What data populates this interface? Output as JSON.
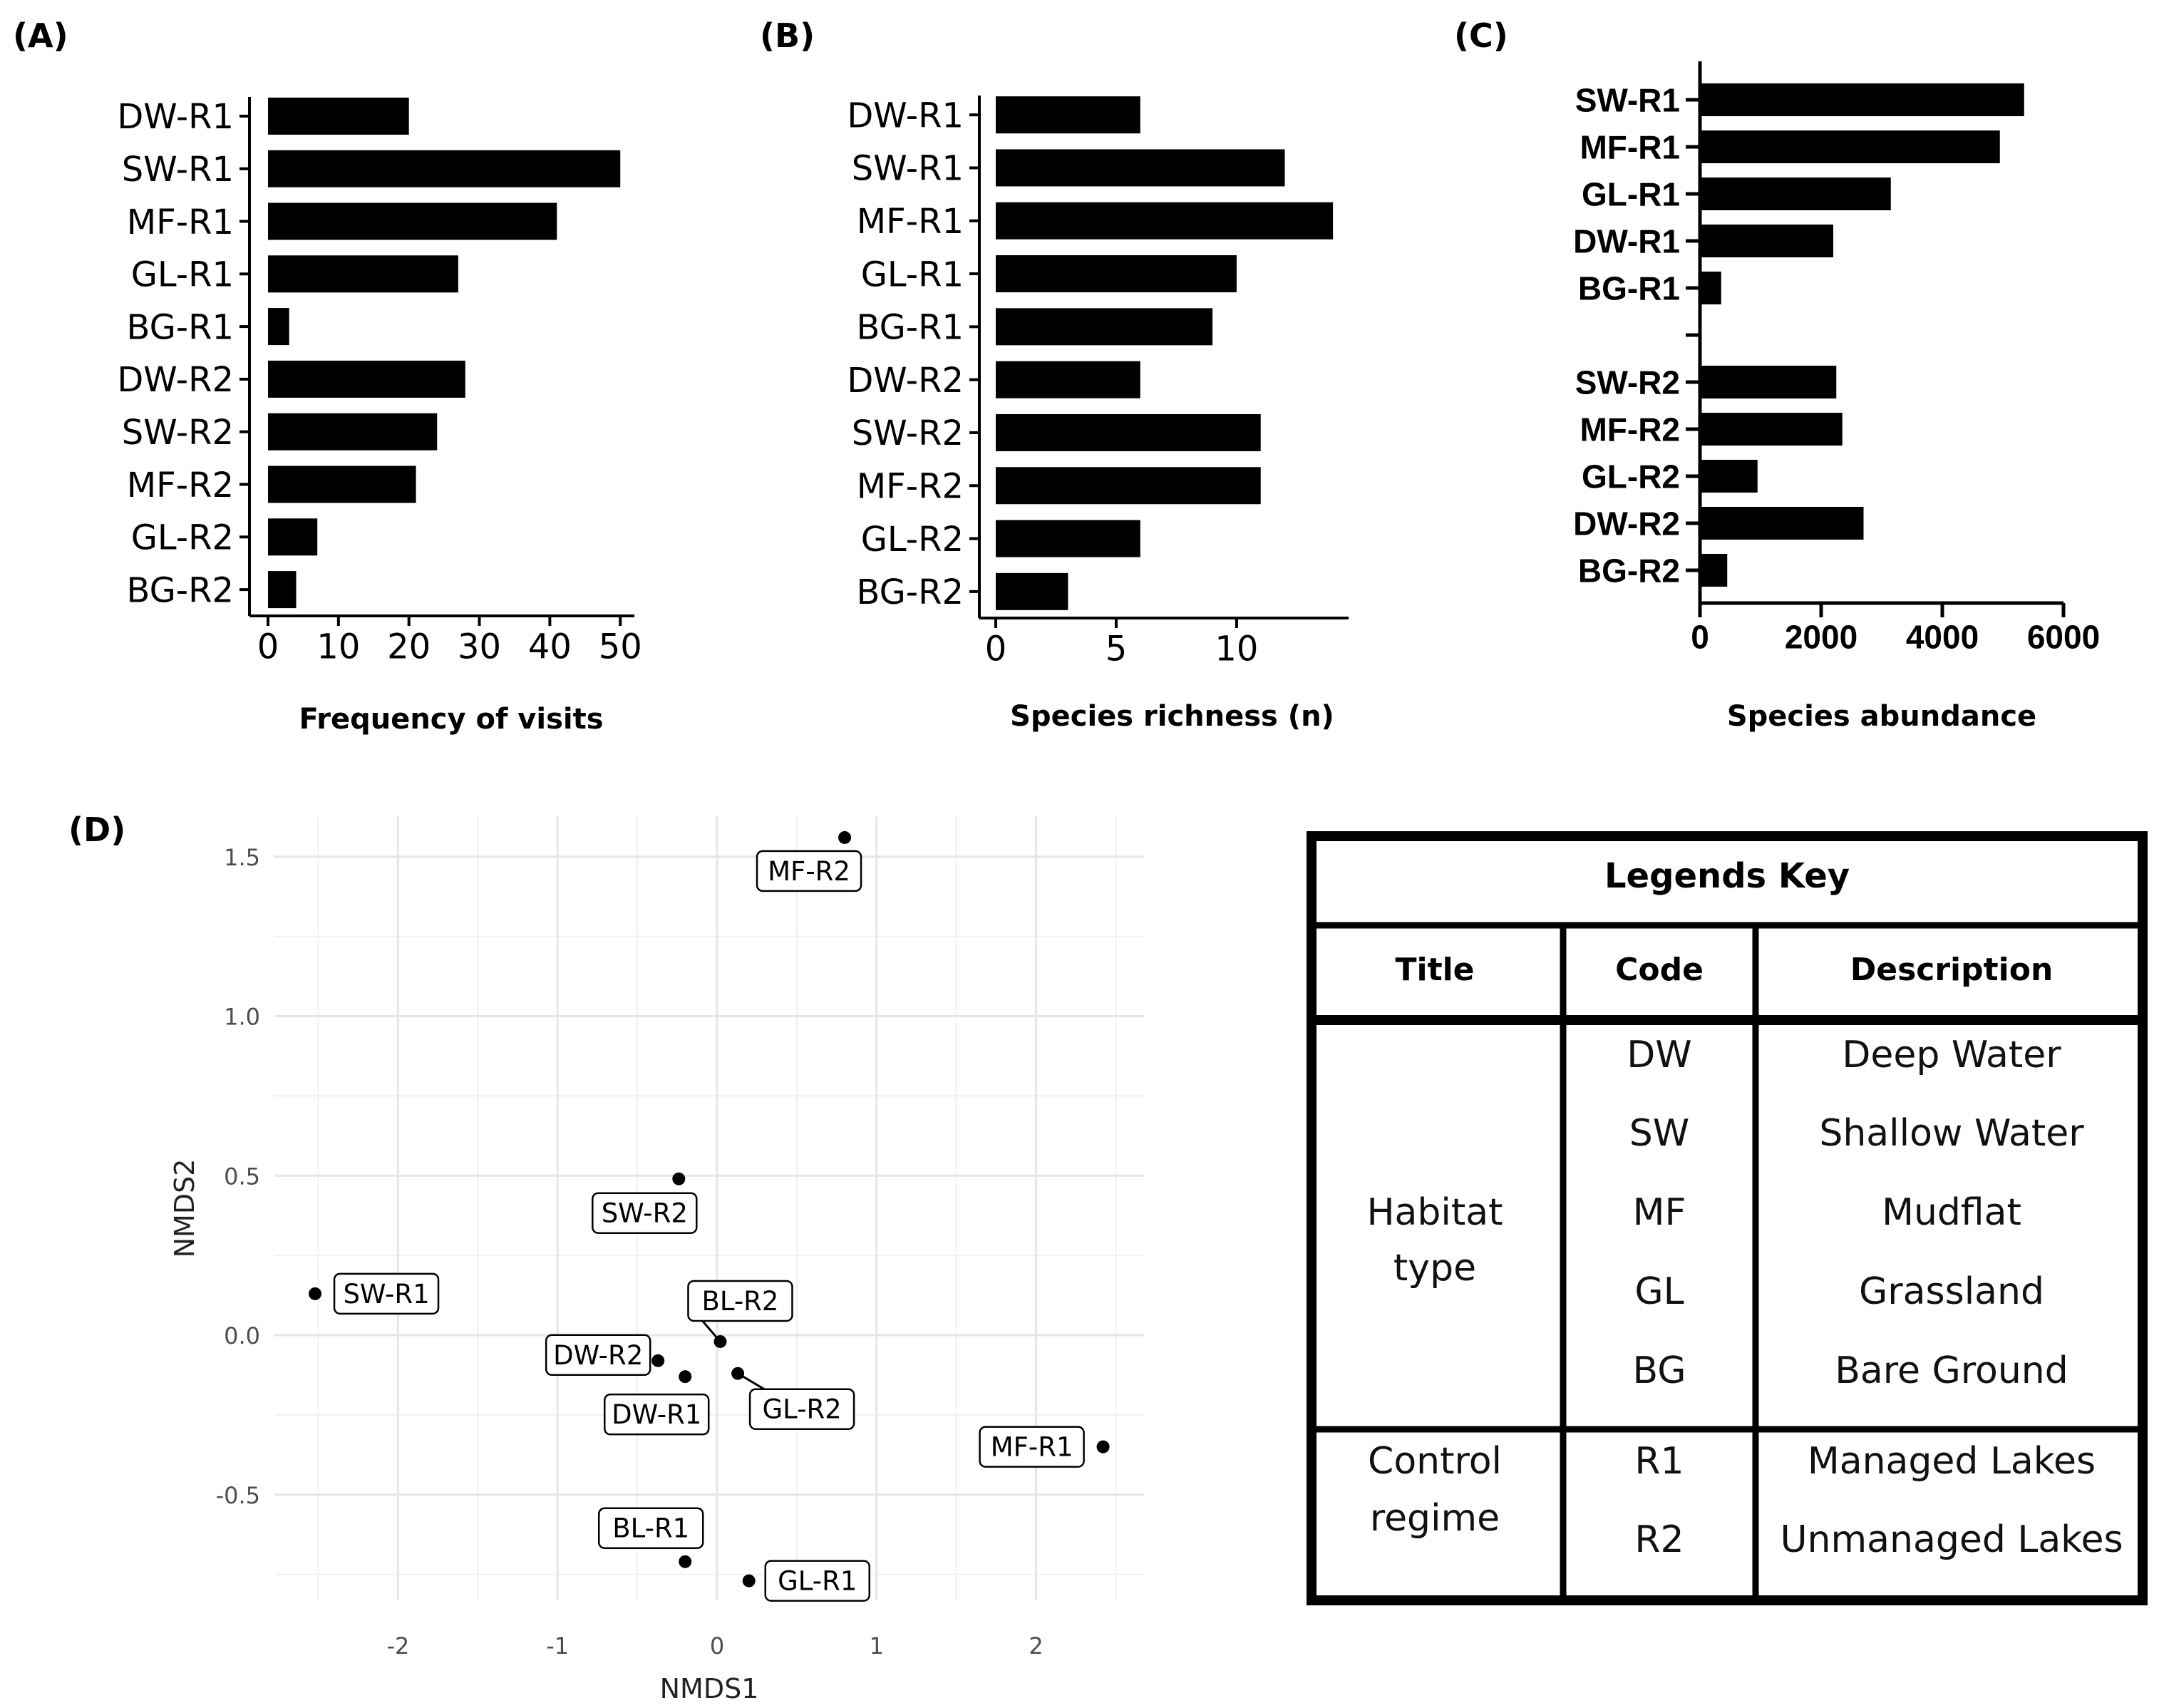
{
  "panel_letters": {
    "a": "(A)",
    "b": "(B)",
    "c": "(C)",
    "d": "(D)"
  },
  "colors": {
    "bar": "#000000",
    "grid": "#e6e6e6",
    "axis": "#000000",
    "point": "#000000"
  },
  "chart_data": [
    {
      "id": "A",
      "type": "bar",
      "orientation": "horizontal",
      "categories": [
        "DW-R1",
        "SW-R1",
        "MF-R1",
        "GL-R1",
        "BG-R1",
        "DW-R2",
        "SW-R2",
        "MF-R2",
        "GL-R2",
        "BG-R2"
      ],
      "values": [
        20,
        50,
        41,
        27,
        3,
        28,
        24,
        21,
        7,
        4
      ],
      "xlabel": "Frequency of visits",
      "xlim": [
        0,
        52
      ],
      "xticks": [
        0,
        10,
        20,
        30,
        40,
        50
      ],
      "grid": false
    },
    {
      "id": "B",
      "type": "bar",
      "orientation": "horizontal",
      "categories": [
        "DW-R1",
        "SW-R1",
        "MF-R1",
        "GL-R1",
        "BG-R1",
        "DW-R2",
        "SW-R2",
        "MF-R2",
        "GL-R2",
        "BG-R2"
      ],
      "values": [
        6,
        12,
        14,
        10,
        9,
        6,
        11,
        11,
        6,
        3
      ],
      "xlabel": "Species richness (n)",
      "xlim": [
        0,
        14.5
      ],
      "xticks": [
        0,
        5,
        10
      ],
      "grid": false
    },
    {
      "id": "C",
      "type": "bar",
      "orientation": "horizontal",
      "categories": [
        "SW-R1",
        "MF-R1",
        "GL-R1",
        "DW-R1",
        "BG-R1",
        "",
        "SW-R2",
        "MF-R2",
        "GL-R2",
        "DW-R2",
        "BG-R2"
      ],
      "values": [
        5350,
        4950,
        3150,
        2200,
        350,
        null,
        2250,
        2350,
        950,
        2700,
        450
      ],
      "xlabel": "Species abundance",
      "xlim": [
        0,
        6000
      ],
      "xticks": [
        0,
        2000,
        4000,
        6000
      ],
      "grid": false
    },
    {
      "id": "D",
      "type": "scatter",
      "xlabel": "NMDS1",
      "ylabel": "NMDS2",
      "xlim": [
        -2.85,
        2.7
      ],
      "ylim": [
        -0.79,
        1.6
      ],
      "xticks": [
        -2,
        -1,
        0,
        1,
        2
      ],
      "yticks": [
        -0.5,
        0.0,
        0.5,
        1.0,
        1.5
      ],
      "xtick_labels": [
        "-2",
        "-1",
        "0",
        "1",
        "2"
      ],
      "ytick_labels": [
        "-0.5",
        "0.0",
        "0.5",
        "1.0",
        "1.5"
      ],
      "grid": true,
      "points": [
        {
          "label": "MF-R2",
          "x": 0.8,
          "y": 1.56
        },
        {
          "label": "SW-R2",
          "x": -0.24,
          "y": 0.49
        },
        {
          "label": "SW-R1",
          "x": -2.52,
          "y": 0.13
        },
        {
          "label": "BL-R2",
          "x": 0.02,
          "y": -0.02
        },
        {
          "label": "DW-R2",
          "x": -0.37,
          "y": -0.08
        },
        {
          "label": "DW-R1",
          "x": -0.2,
          "y": -0.13
        },
        {
          "label": "GL-R2",
          "x": 0.13,
          "y": -0.12
        },
        {
          "label": "MF-R1",
          "x": 2.42,
          "y": -0.35
        },
        {
          "label": "BL-R1",
          "x": -0.2,
          "y": -0.71
        },
        {
          "label": "GL-R1",
          "x": 0.2,
          "y": -0.77
        }
      ]
    }
  ],
  "legend_key": {
    "title": "Legends Key",
    "headers": [
      "Title",
      "Code",
      "Description"
    ],
    "groups": [
      {
        "title_lines": [
          "Habitat",
          "type"
        ],
        "rows": [
          {
            "code": "DW",
            "description": "Deep Water"
          },
          {
            "code": "SW",
            "description": "Shallow Water"
          },
          {
            "code": "MF",
            "description": "Mudflat"
          },
          {
            "code": "GL",
            "description": "Grassland"
          },
          {
            "code": "BG",
            "description": "Bare Ground"
          }
        ]
      },
      {
        "title_lines": [
          "Control",
          "regime"
        ],
        "rows": [
          {
            "code": "R1",
            "description": "Managed Lakes"
          },
          {
            "code": "R2",
            "description": "Unmanaged Lakes"
          }
        ]
      }
    ]
  }
}
